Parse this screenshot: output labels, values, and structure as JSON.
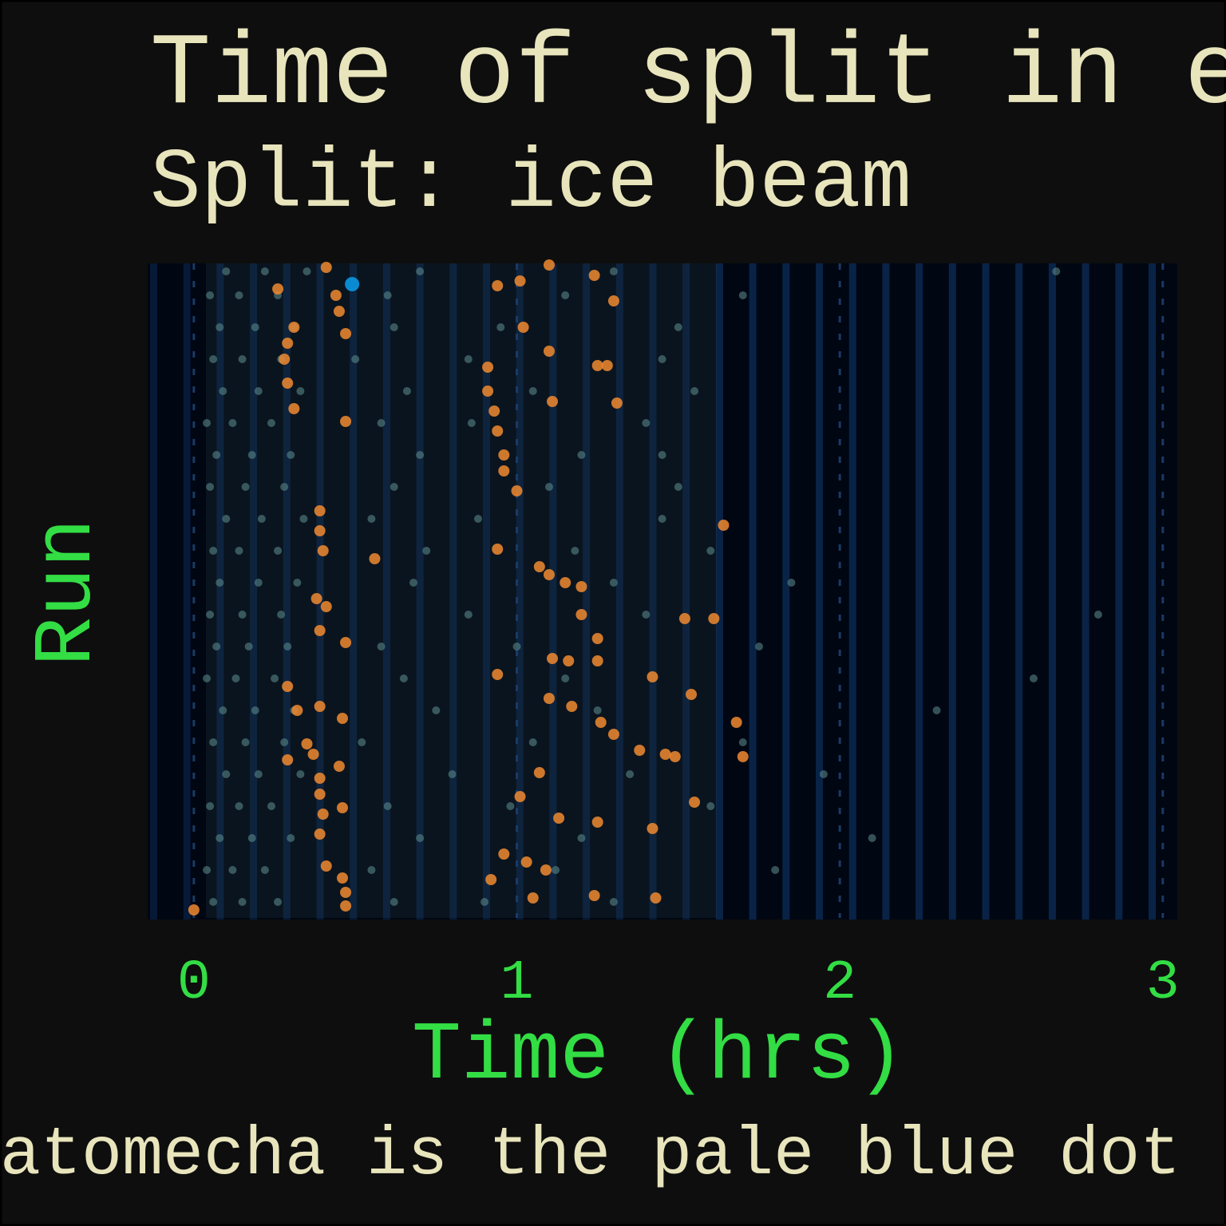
{
  "chart_data": {
    "type": "scatter",
    "title": "Time of split in e",
    "subtitle": "Split: ice beam",
    "x_label": "Time (hrs)",
    "y_label": "Run",
    "caption": "atomecha is the pale blue dot",
    "xlim": [
      -0.143,
      3.045
    ],
    "ylim": [
      0,
      820
    ],
    "xticks": [
      0,
      1,
      2,
      3
    ],
    "grid": true,
    "series": [
      {
        "color": "#5e8f8f",
        "x": [
          0.06,
          0.15,
          0.26,
          0.62,
          0.9,
          1.3,
          0.04,
          0.12,
          0.22,
          0.55,
          1.12,
          1.8,
          0.08,
          0.18,
          0.3,
          0.7,
          1.2,
          2.1,
          0.05,
          0.14,
          0.24,
          0.6,
          0.98,
          1.6,
          0.1,
          0.2,
          0.33,
          0.8,
          1.35,
          1.95,
          0.06,
          0.16,
          0.28,
          0.52,
          1.05,
          1.7,
          0.09,
          0.19,
          0.31,
          0.75,
          1.25,
          2.3,
          0.04,
          0.13,
          0.25,
          0.65,
          1.15,
          2.6,
          0.07,
          0.17,
          0.29,
          0.58,
          1.0,
          1.75,
          0.05,
          0.15,
          0.27,
          0.85,
          1.4,
          2.8,
          0.08,
          0.2,
          0.32,
          0.68,
          1.3,
          1.85,
          0.06,
          0.14,
          0.26,
          0.72,
          1.18,
          1.6,
          0.1,
          0.21,
          0.34,
          0.55,
          0.88,
          1.45,
          0.05,
          0.16,
          0.28,
          0.62,
          1.1,
          1.5,
          0.07,
          0.18,
          0.3,
          0.7,
          1.2,
          1.45,
          0.04,
          0.12,
          0.24,
          0.58,
          0.86,
          1.4,
          0.09,
          0.2,
          0.33,
          0.66,
          1.05,
          1.55,
          0.06,
          0.15,
          0.27,
          0.5,
          0.85,
          1.45,
          0.08,
          0.19,
          0.31,
          0.62,
          0.95,
          1.5,
          0.05,
          0.14,
          0.26,
          0.6,
          1.15,
          1.7,
          0.1,
          0.22,
          0.35,
          0.7,
          1.3,
          2.67
        ],
        "values": [
          20,
          20,
          20,
          20,
          20,
          20,
          60,
          60,
          60,
          60,
          60,
          60,
          100,
          100,
          100,
          100,
          100,
          100,
          140,
          140,
          140,
          140,
          140,
          140,
          180,
          180,
          180,
          180,
          180,
          180,
          220,
          220,
          220,
          220,
          220,
          220,
          260,
          260,
          260,
          260,
          260,
          260,
          300,
          300,
          300,
          300,
          300,
          300,
          340,
          340,
          340,
          340,
          340,
          340,
          380,
          380,
          380,
          380,
          380,
          380,
          420,
          420,
          420,
          420,
          420,
          420,
          460,
          460,
          460,
          460,
          460,
          460,
          500,
          500,
          500,
          500,
          500,
          500,
          540,
          540,
          540,
          540,
          540,
          540,
          580,
          580,
          580,
          580,
          580,
          580,
          620,
          620,
          620,
          620,
          620,
          620,
          660,
          660,
          660,
          660,
          660,
          660,
          700,
          700,
          700,
          700,
          700,
          700,
          740,
          740,
          740,
          740,
          740,
          740,
          780,
          780,
          780,
          780,
          780,
          780,
          810,
          810,
          810,
          810,
          810,
          810
        ]
      },
      {
        "color": "#f08a30",
        "x": [
          0.41,
          0.44,
          0.45,
          0.47,
          0.31,
          0.29,
          0.28,
          0.29,
          0.31,
          0.47,
          0.91,
          0.91,
          0.93,
          0.94,
          0.96,
          0.96,
          1.0,
          1.02,
          1.1,
          0.94,
          0.39,
          0.39,
          0.4,
          0.56,
          1.07,
          1.1,
          1.15,
          1.2,
          1.2,
          1.25,
          1.52,
          1.61,
          0.38,
          0.41,
          0.39,
          0.47,
          1.11,
          1.16,
          1.25,
          0.94,
          1.42,
          0.29,
          0.32,
          0.39,
          0.46,
          1.1,
          1.17,
          1.26,
          1.3,
          1.38,
          1.46,
          1.49,
          1.68,
          1.7,
          0.35,
          0.37,
          0.29,
          0.45,
          1.07,
          1.01,
          0.39,
          0.39,
          0.4,
          0.46,
          1.55,
          1.13,
          1.25,
          1.42,
          0.39,
          0.96,
          1.03,
          1.09,
          0.92,
          0.41,
          0.46,
          0.47,
          0.47,
          1.05,
          1.43,
          1.24,
          0.0,
          1.24,
          1.01,
          0.94,
          1.3,
          1.1,
          1.25,
          1.28,
          1.11,
          1.31,
          0.26,
          1.64,
          1.54
        ],
        "values": [
          815,
          780,
          760,
          732,
          740,
          720,
          700,
          670,
          638,
          622,
          690,
          660,
          635,
          610,
          580,
          560,
          535,
          740,
          710,
          462,
          510,
          485,
          460,
          450,
          440,
          430,
          420,
          415,
          380,
          350,
          375,
          375,
          400,
          390,
          360,
          345,
          325,
          322,
          322,
          305,
          302,
          290,
          260,
          265,
          250,
          275,
          265,
          245,
          230,
          210,
          205,
          202,
          245,
          202,
          218,
          205,
          198,
          190,
          182,
          152,
          175,
          155,
          130,
          138,
          145,
          125,
          120,
          112,
          105,
          80,
          70,
          60,
          48,
          65,
          50,
          32,
          15,
          25,
          25,
          28,
          10,
          805,
          798,
          792,
          773,
          818,
          692,
          692,
          647,
          645,
          788,
          492,
          280
        ]
      },
      {
        "color": "#0a8ad0",
        "x": [
          0.49
        ],
        "values": [
          794
        ]
      }
    ]
  }
}
